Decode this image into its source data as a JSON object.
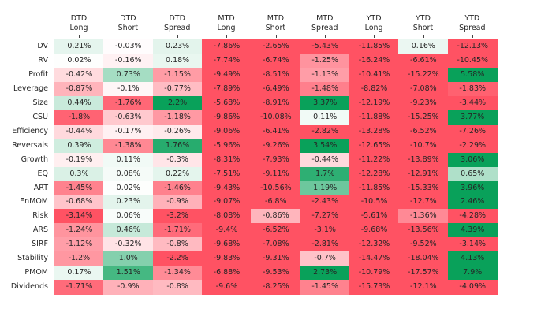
{
  "chart_data": {
    "type": "heatmap",
    "columns": [
      "DTD Long",
      "DTD Short",
      "DTD Spread",
      "MTD Long",
      "MTD Short",
      "MTD Spread",
      "YTD Long",
      "YTD Short",
      "YTD Spread"
    ],
    "column_headers": [
      [
        "DTD",
        "Long"
      ],
      [
        "DTD",
        "Short"
      ],
      [
        "DTD",
        "Spread"
      ],
      [
        "MTD",
        "Long"
      ],
      [
        "MTD",
        "Short"
      ],
      [
        "MTD",
        "Spread"
      ],
      [
        "YTD",
        "Long"
      ],
      [
        "YTD",
        "Short"
      ],
      [
        "YTD",
        "Spread"
      ]
    ],
    "rows": [
      "DV",
      "RV",
      "Profit",
      "Leverage",
      "Size",
      "CSU",
      "Efficiency",
      "Reversals",
      "Growth",
      "EQ",
      "ART",
      "EnMOM",
      "Risk",
      "ARS",
      "SIRF",
      "Stability",
      "PMOM",
      "Dividends"
    ],
    "labels": [
      [
        "0.21%",
        "-0.03%",
        "0.23%",
        "-7.86%",
        "-2.65%",
        "-5.43%",
        "-11.85%",
        "0.16%",
        "-12.13%"
      ],
      [
        "0.02%",
        "-0.16%",
        "0.18%",
        "-7.74%",
        "-6.74%",
        "-1.25%",
        "-16.24%",
        "-6.61%",
        "-10.45%"
      ],
      [
        "-0.42%",
        "0.73%",
        "-1.15%",
        "-9.49%",
        "-8.51%",
        "-1.13%",
        "-10.41%",
        "-15.22%",
        "5.58%"
      ],
      [
        "-0.87%",
        "-0.1%",
        "-0.77%",
        "-7.89%",
        "-6.49%",
        "-1.48%",
        "-8.82%",
        "-7.08%",
        "-1.83%"
      ],
      [
        "0.44%",
        "-1.76%",
        "2.2%",
        "-5.68%",
        "-8.91%",
        "3.37%",
        "-12.19%",
        "-9.23%",
        "-3.44%"
      ],
      [
        "-1.8%",
        "-0.63%",
        "-1.18%",
        "-9.86%",
        "-10.08%",
        "0.11%",
        "-11.88%",
        "-15.25%",
        "3.77%"
      ],
      [
        "-0.44%",
        "-0.17%",
        "-0.26%",
        "-9.06%",
        "-6.41%",
        "-2.82%",
        "-13.28%",
        "-6.52%",
        "-7.26%"
      ],
      [
        "0.39%",
        "-1.38%",
        "1.76%",
        "-5.96%",
        "-9.26%",
        "3.54%",
        "-12.65%",
        "-10.7%",
        "-2.29%"
      ],
      [
        "-0.19%",
        "0.11%",
        "-0.3%",
        "-8.31%",
        "-7.93%",
        "-0.44%",
        "-11.22%",
        "-13.89%",
        "3.06%"
      ],
      [
        "0.3%",
        "0.08%",
        "0.22%",
        "-7.51%",
        "-9.11%",
        "1.7%",
        "-12.28%",
        "-12.91%",
        "0.65%"
      ],
      [
        "-1.45%",
        "0.02%",
        "-1.46%",
        "-9.43%",
        "-10.56%",
        "1.19%",
        "-11.85%",
        "-15.33%",
        "3.96%"
      ],
      [
        "-0.68%",
        "0.23%",
        "-0.9%",
        "-9.07%",
        "-6.8%",
        "-2.43%",
        "-10.5%",
        "-12.7%",
        "2.46%"
      ],
      [
        "-3.14%",
        "0.06%",
        "-3.2%",
        "-8.08%",
        "-0.86%",
        "-7.27%",
        "-5.61%",
        "-1.36%",
        "-4.28%"
      ],
      [
        "-1.24%",
        "0.46%",
        "-1.71%",
        "-9.4%",
        "-6.52%",
        "-3.1%",
        "-9.68%",
        "-13.56%",
        "4.39%"
      ],
      [
        "-1.12%",
        "-0.32%",
        "-0.8%",
        "-9.68%",
        "-7.08%",
        "-2.81%",
        "-12.32%",
        "-9.52%",
        "-3.14%"
      ],
      [
        "-1.2%",
        "1.0%",
        "-2.2%",
        "-9.83%",
        "-9.31%",
        "-0.7%",
        "-14.47%",
        "-18.04%",
        "4.13%"
      ],
      [
        "0.17%",
        "1.51%",
        "-1.34%",
        "-6.88%",
        "-9.53%",
        "2.73%",
        "-10.79%",
        "-17.57%",
        "7.9%"
      ],
      [
        "-1.71%",
        "-0.9%",
        "-0.8%",
        "-9.6%",
        "-8.25%",
        "-1.45%",
        "-15.73%",
        "-12.1%",
        "-4.09%"
      ]
    ],
    "color_range": [
      -2,
      2
    ],
    "colors": {
      "negative": "#ff5263",
      "neutral": "#ffffff",
      "positive": "#09a15a"
    },
    "legend": "none",
    "grid": false
  }
}
